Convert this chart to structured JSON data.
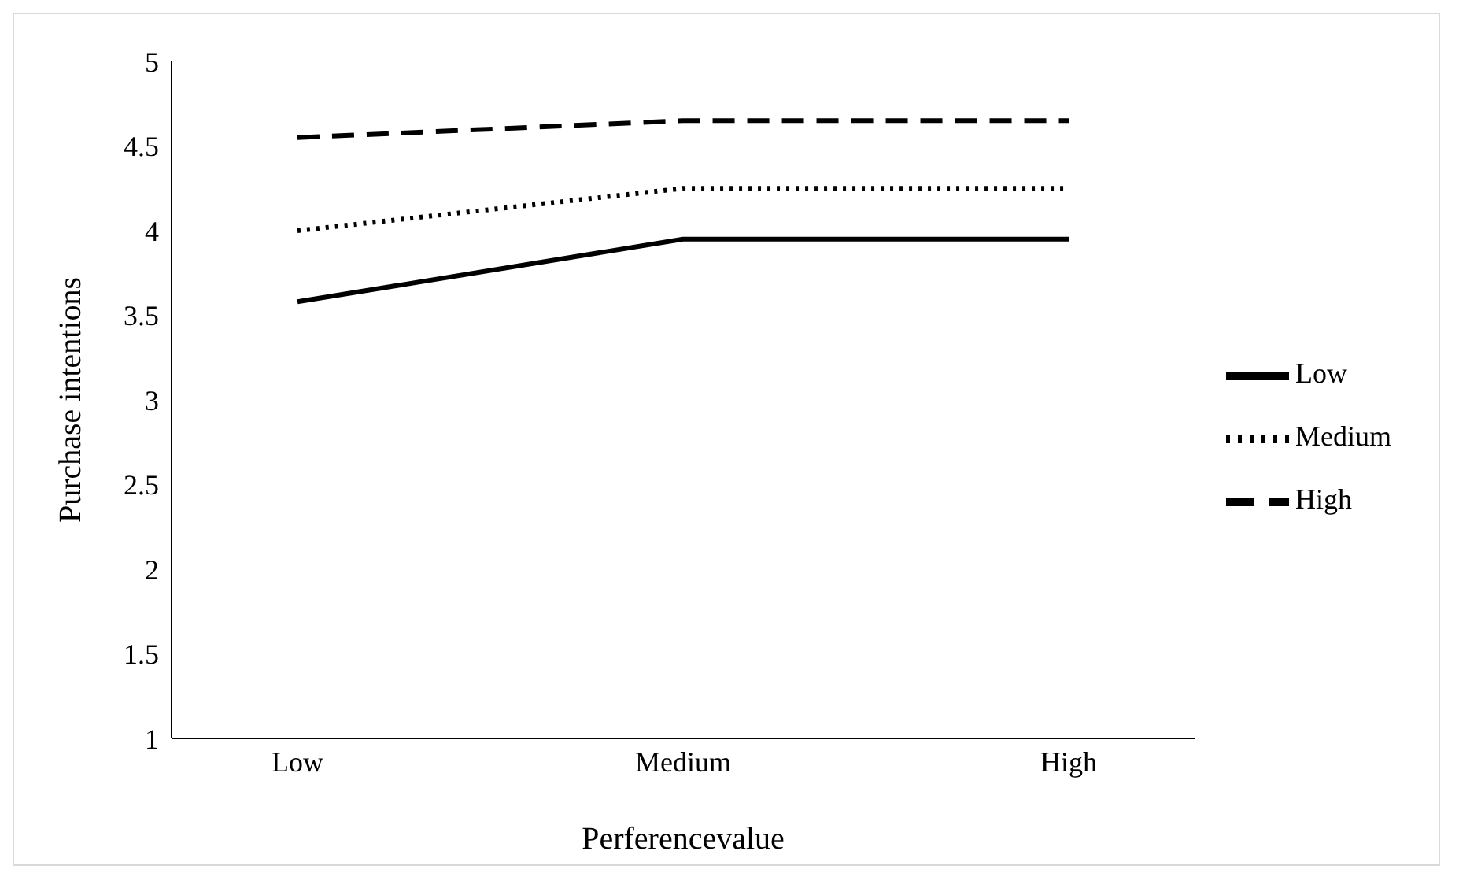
{
  "chart_data": {
    "type": "line",
    "xlabel": "Perferencevalue",
    "ylabel": "Purchase intentions",
    "categories": [
      "Low",
      "Medium",
      "High"
    ],
    "series": [
      {
        "name": "Low",
        "color": "#000000",
        "values": [
          3.58,
          3.95,
          3.95
        ],
        "line_style": "solid"
      },
      {
        "name": "Medium",
        "color": "#000000",
        "values": [
          4.0,
          4.25,
          4.25
        ],
        "line_style": "dotted"
      },
      {
        "name": "High",
        "color": "#000000",
        "values": [
          4.55,
          4.65,
          4.65
        ],
        "line_style": "dashed"
      }
    ],
    "ylim": [
      1,
      5
    ],
    "yticks": [
      1,
      1.5,
      2,
      2.5,
      3,
      3.5,
      4,
      4.5,
      5
    ],
    "grid": false,
    "legend": "right",
    "marker": "none"
  }
}
